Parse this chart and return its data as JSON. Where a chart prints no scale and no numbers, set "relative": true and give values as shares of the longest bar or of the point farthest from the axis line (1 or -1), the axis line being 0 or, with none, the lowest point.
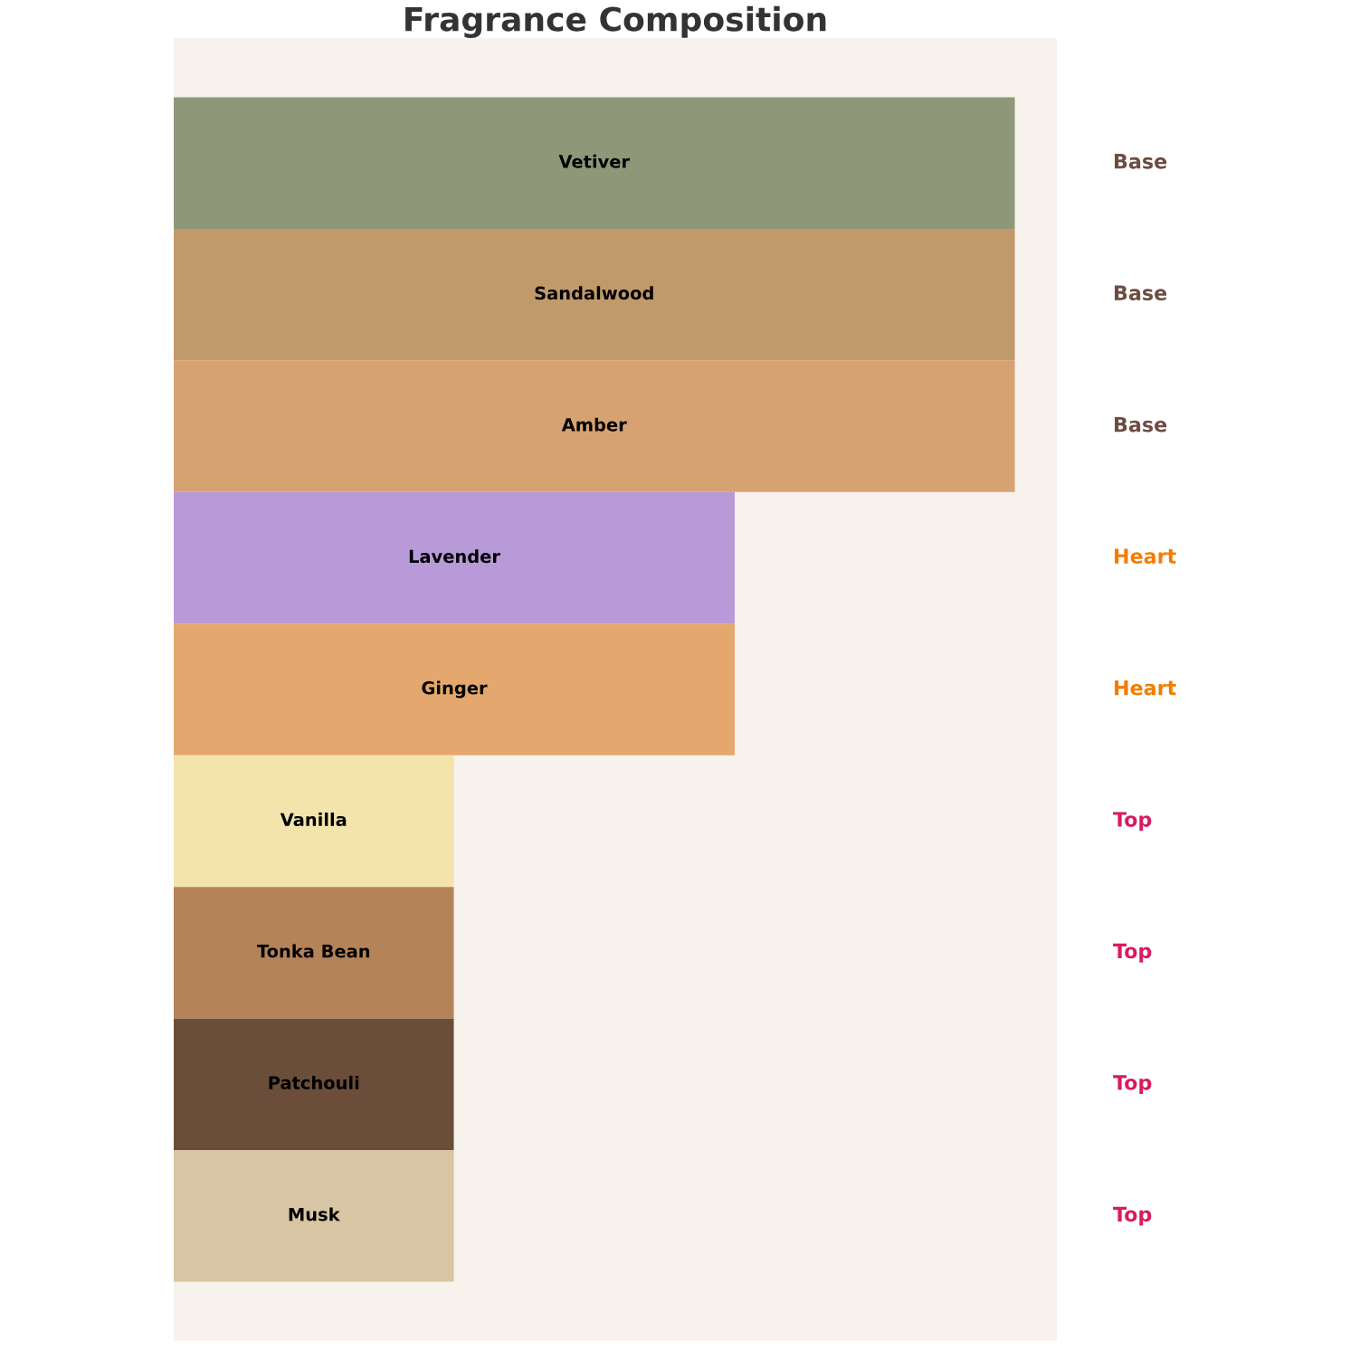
{
  "chart_data": {
    "type": "bar",
    "title": "Fragrance Composition",
    "orientation": "horizontal",
    "relative": true,
    "categories": [
      "Vetiver",
      "Sandalwood",
      "Amber",
      "Lavender",
      "Ginger",
      "Vanilla",
      "Tonka Bean",
      "Patchouli",
      "Musk"
    ],
    "values": [
      1,
      1,
      1,
      0.667,
      0.667,
      0.333,
      0.333,
      0.333,
      0.333
    ],
    "colors": [
      "#8f9779",
      "#c19a6b",
      "#d7a271",
      "#b89ad8",
      "#e4a86e",
      "#f3e4ab",
      "#b5835a",
      "#6a4e39",
      "#d8c5a3"
    ],
    "annotations": [
      "Base",
      "Base",
      "Base",
      "Heart",
      "Heart",
      "Top",
      "Top",
      "Top",
      "Top"
    ]
  }
}
